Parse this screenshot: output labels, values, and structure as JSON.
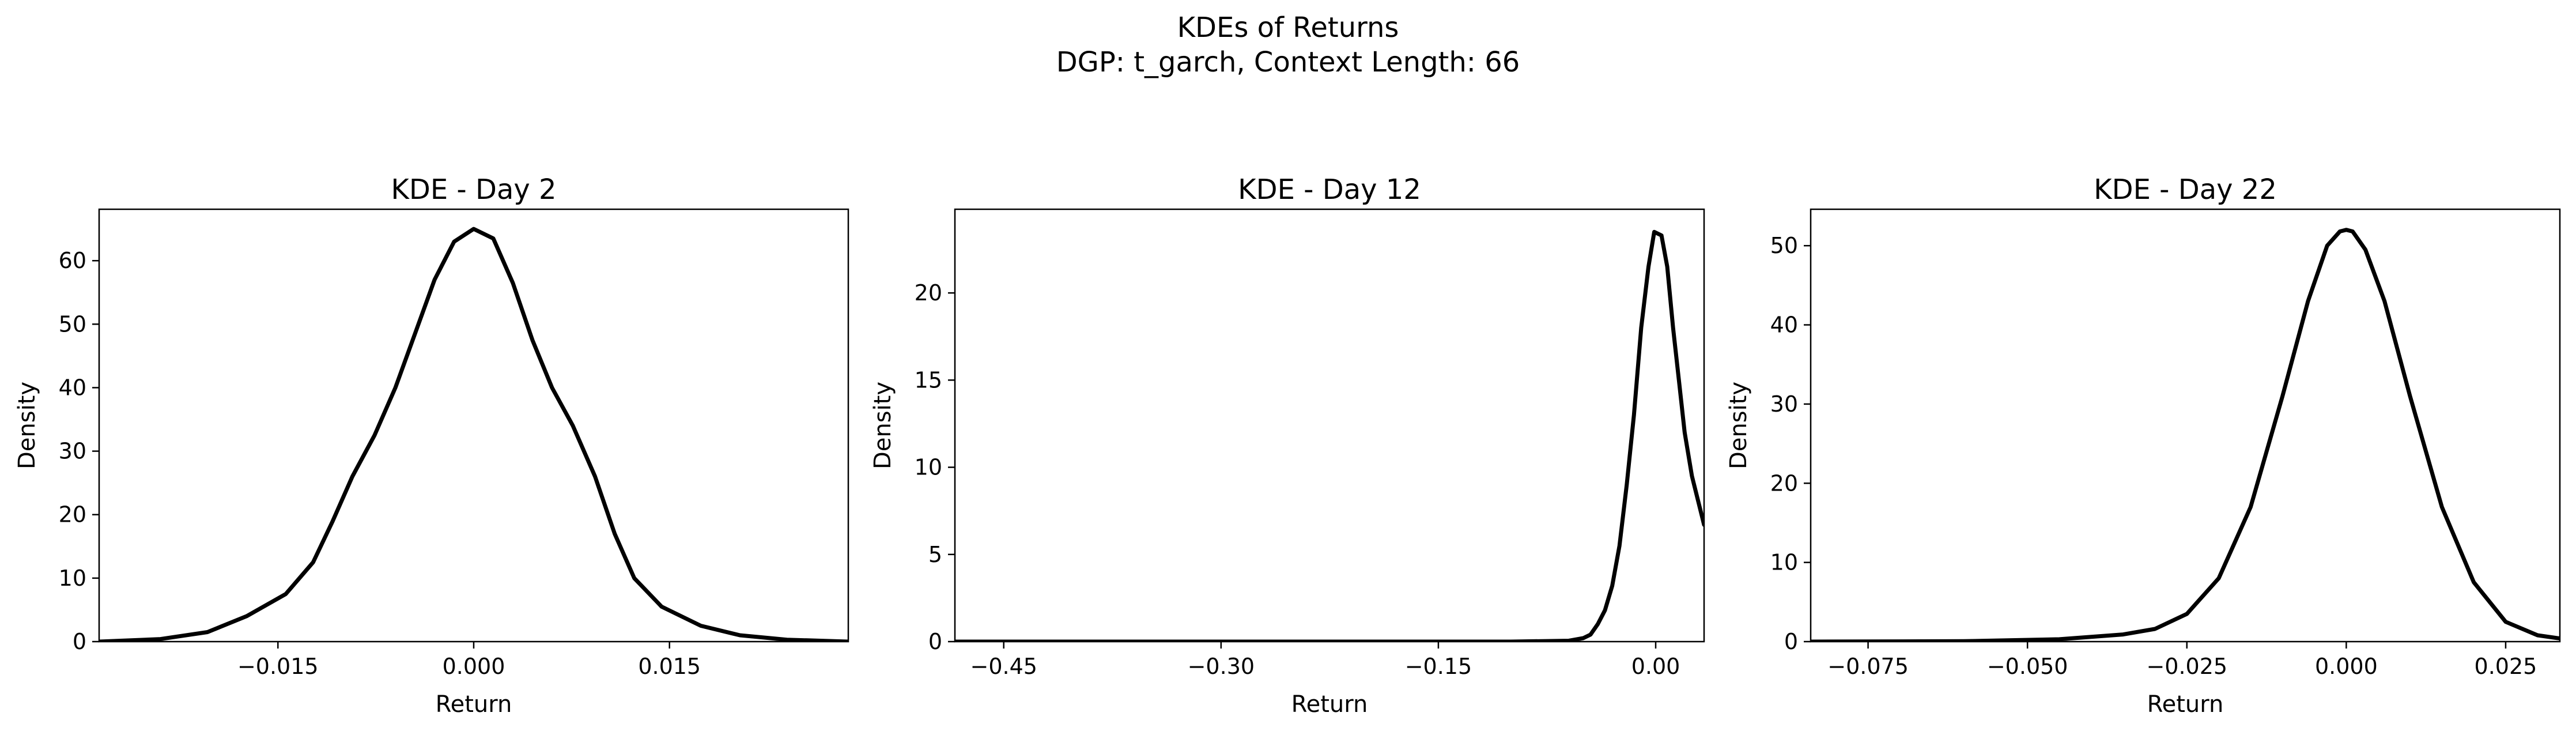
{
  "figure": {
    "title_line1": "KDEs of Returns",
    "title_line2": "DGP: t_garch, Context Length: 66"
  },
  "chart_data": [
    {
      "type": "line",
      "title": "KDE - Day 2",
      "xlabel": "Return",
      "ylabel": "Density",
      "xlim": [
        -0.0287,
        0.0287
      ],
      "ylim": [
        0,
        68.1
      ],
      "xticks": [
        -0.015,
        0.0,
        0.015
      ],
      "xtick_labels": [
        "−0.015",
        "0.000",
        "0.015"
      ],
      "yticks": [
        0,
        10,
        20,
        30,
        40,
        50,
        60
      ],
      "ytick_labels": [
        "0",
        "10",
        "20",
        "30",
        "40",
        "50",
        "60"
      ],
      "line_color": "#000000",
      "series": [
        {
          "x": [
            -0.0287,
            -0.024,
            -0.0204,
            -0.0174,
            -0.0144,
            -0.0123,
            -0.0108,
            -0.0093,
            -0.0076,
            -0.006,
            -0.0045,
            -0.003,
            -0.0015,
            0.0,
            0.0015,
            0.003,
            0.0045,
            0.006,
            0.0076,
            0.0093,
            0.0108,
            0.0123,
            0.0144,
            0.0174,
            0.0204,
            0.024,
            0.0287
          ],
          "y": [
            0.0,
            0.4,
            1.5,
            4.0,
            7.5,
            12.5,
            19.0,
            26.0,
            32.5,
            40.0,
            48.5,
            57.0,
            63.0,
            65.0,
            63.5,
            56.5,
            47.5,
            40.0,
            34.0,
            26.0,
            17.0,
            10.0,
            5.5,
            2.5,
            1.0,
            0.3,
            0.0
          ]
        }
      ]
    },
    {
      "type": "line",
      "title": "KDE - Day 12",
      "xlabel": "Return",
      "ylabel": "Density",
      "xlim": [
        -0.4837,
        0.0334
      ],
      "ylim": [
        0,
        24.8
      ],
      "xticks": [
        -0.45,
        -0.3,
        -0.15,
        0.0
      ],
      "xtick_labels": [
        "−0.45",
        "−0.30",
        "−0.15",
        "0.00"
      ],
      "yticks": [
        0,
        5,
        10,
        15,
        20
      ],
      "ytick_labels": [
        "0",
        "5",
        "10",
        "15",
        "20"
      ],
      "line_color": "#000000",
      "series": [
        {
          "x": [
            -0.4837,
            -0.1,
            -0.06,
            -0.05,
            -0.045,
            -0.04,
            -0.035,
            -0.03,
            -0.025,
            -0.02,
            -0.015,
            -0.01,
            -0.005,
            -0.001,
            0.004,
            0.008,
            0.012,
            0.016,
            0.02,
            0.025,
            0.0334
          ],
          "y": [
            0.0,
            0.0,
            0.05,
            0.2,
            0.4,
            1.0,
            1.8,
            3.2,
            5.5,
            9.0,
            13.0,
            18.0,
            21.5,
            23.5,
            23.3,
            21.5,
            18.0,
            15.0,
            12.0,
            9.5,
            6.7
          ]
        }
      ]
    },
    {
      "type": "line",
      "title": "KDE - Day 22",
      "xlabel": "Return",
      "ylabel": "Density",
      "xlim": [
        -0.084,
        0.0335
      ],
      "ylim": [
        0,
        54.6
      ],
      "xticks": [
        -0.075,
        -0.05,
        -0.025,
        0.0,
        0.025
      ],
      "xtick_labels": [
        "−0.075",
        "−0.050",
        "−0.025",
        "0.000",
        "0.025"
      ],
      "yticks": [
        0,
        10,
        20,
        30,
        40,
        50
      ],
      "ytick_labels": [
        "0",
        "10",
        "20",
        "30",
        "40",
        "50"
      ],
      "line_color": "#000000",
      "series": [
        {
          "x": [
            -0.084,
            -0.06,
            -0.045,
            -0.035,
            -0.03,
            -0.025,
            -0.02,
            -0.015,
            -0.01,
            -0.006,
            -0.003,
            -0.001,
            0.0,
            0.001,
            0.003,
            0.006,
            0.01,
            0.015,
            0.02,
            0.025,
            0.03,
            0.0335
          ],
          "y": [
            0.0,
            0.05,
            0.3,
            0.9,
            1.6,
            3.5,
            8.0,
            17.0,
            31.0,
            43.0,
            50.0,
            51.8,
            52.0,
            51.8,
            49.5,
            43.0,
            31.0,
            17.0,
            7.5,
            2.5,
            0.8,
            0.4
          ]
        }
      ]
    }
  ]
}
